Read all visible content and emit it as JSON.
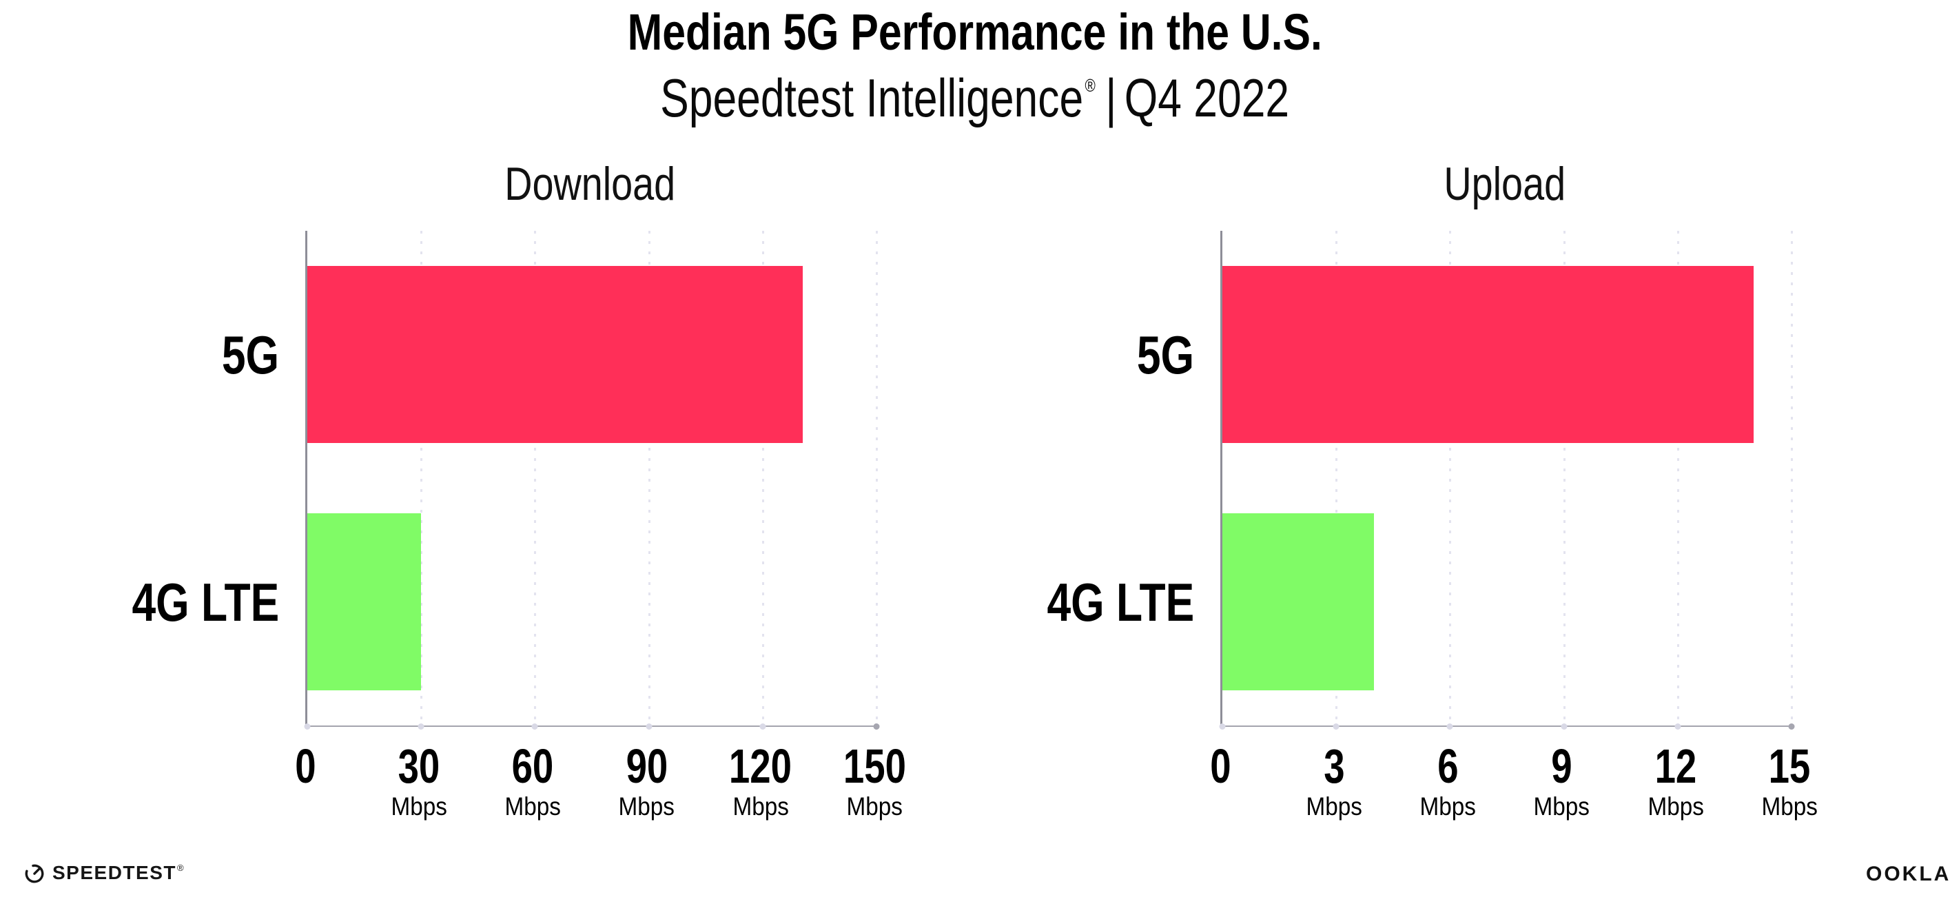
{
  "header": {
    "title": "Median 5G Performance in the U.S.",
    "subtitle": {
      "brand": "Speedtest Intelligence",
      "registered_mark": "®",
      "separator": "|",
      "period": "Q4 2022"
    }
  },
  "chart_data": [
    {
      "type": "bar",
      "orientation": "horizontal",
      "title": "Download",
      "categories": [
        "5G",
        "4G LTE"
      ],
      "values": [
        130.5,
        30
      ],
      "unit": "Mbps",
      "xlim": [
        0,
        150
      ],
      "xticks": [
        0,
        30,
        60,
        90,
        120,
        150
      ],
      "tick_unit_label": "Mbps",
      "grid": "vertical dotted gridlines at each tick",
      "legend": "none",
      "bar_colors": [
        "#FF2F58",
        "#80FB66"
      ]
    },
    {
      "type": "bar",
      "orientation": "horizontal",
      "title": "Upload",
      "categories": [
        "5G",
        "4G LTE"
      ],
      "values": [
        14,
        4
      ],
      "unit": "Mbps",
      "xlim": [
        0,
        15
      ],
      "xticks": [
        0,
        3,
        6,
        9,
        12,
        15
      ],
      "tick_unit_label": "Mbps",
      "grid": "vertical dotted gridlines at each tick",
      "legend": "none",
      "bar_colors": [
        "#FF2F58",
        "#80FB66"
      ]
    }
  ],
  "footer": {
    "speedtest_wordmark": "SPEEDTEST",
    "speedtest_mark": "®",
    "ookla_wordmark": "OOKLA",
    "ookla_mark": "®"
  },
  "colors": {
    "background": "#FFFFFF",
    "bar_5g": "#FF2F58",
    "bar_4g_lte": "#80FB66",
    "gridline": "#E3E3EF",
    "axis_line": "#9A9AA4",
    "text": "#000000"
  }
}
